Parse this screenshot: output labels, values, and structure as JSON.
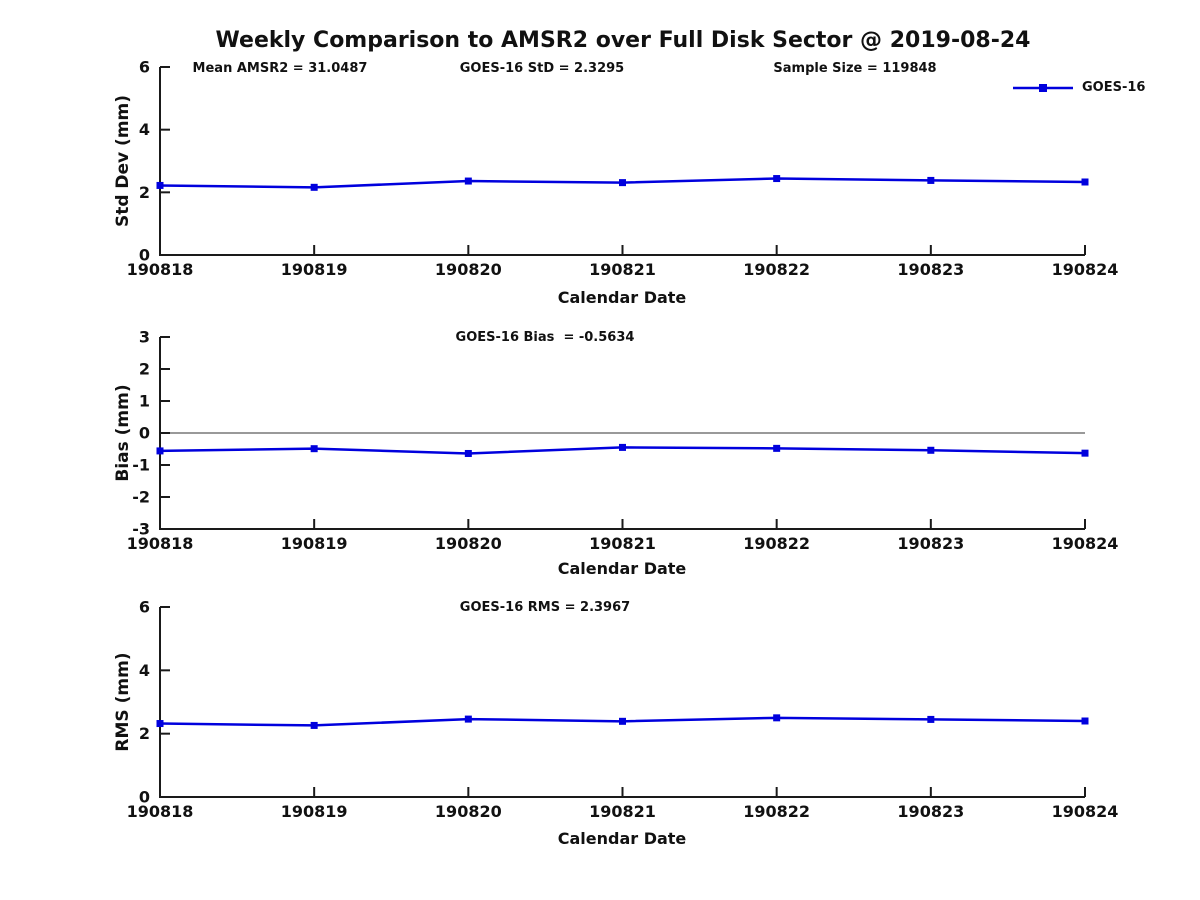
{
  "title": "Weekly Comparison to AMSR2 over Full Disk Sector @ 2019-08-24",
  "legend": {
    "label": "GOES-16",
    "position": "top-right",
    "color": "#0000dd"
  },
  "colors": {
    "line": "#0000dd",
    "axis": "#1a1a1a",
    "zero_line": "#333333",
    "text": "#111111"
  },
  "chart_data": [
    {
      "type": "line",
      "name": "std-dev",
      "ylabel": "Std Dev (mm)",
      "xlabel": "Calendar Date",
      "categories": [
        "190818",
        "190819",
        "190820",
        "190821",
        "190822",
        "190823",
        "190824"
      ],
      "yticks": [
        0,
        2,
        4,
        6
      ],
      "ylim": [
        0,
        6
      ],
      "grid": false,
      "series": [
        {
          "name": "GOES-16",
          "color": "#0000dd",
          "marker": "square",
          "values": [
            2.22,
            2.16,
            2.36,
            2.31,
            2.44,
            2.38,
            2.33
          ]
        }
      ],
      "annotations": [
        {
          "text": "Mean AMSR2 = 31.0487"
        },
        {
          "text": "GOES-16 StD = 2.3295"
        },
        {
          "text": "Sample Size = 119848"
        }
      ]
    },
    {
      "type": "line",
      "name": "bias",
      "ylabel": "Bias (mm)",
      "xlabel": "Calendar Date",
      "categories": [
        "190818",
        "190819",
        "190820",
        "190821",
        "190822",
        "190823",
        "190824"
      ],
      "yticks": [
        -3,
        -2,
        -1,
        0,
        1,
        2,
        3
      ],
      "ylim": [
        -3,
        3
      ],
      "zero_line": true,
      "grid": false,
      "series": [
        {
          "name": "GOES-16",
          "color": "#0000dd",
          "marker": "square",
          "values": [
            -0.56,
            -0.49,
            -0.64,
            -0.45,
            -0.48,
            -0.54,
            -0.63
          ]
        }
      ],
      "annotations": [
        {
          "text": "GOES-16 Bias  = -0.5634"
        }
      ]
    },
    {
      "type": "line",
      "name": "rms",
      "ylabel": "RMS (mm)",
      "xlabel": "Calendar Date",
      "categories": [
        "190818",
        "190819",
        "190820",
        "190821",
        "190822",
        "190823",
        "190824"
      ],
      "yticks": [
        0,
        2,
        4,
        6
      ],
      "ylim": [
        0,
        6
      ],
      "grid": false,
      "series": [
        {
          "name": "GOES-16",
          "color": "#0000dd",
          "marker": "square",
          "values": [
            2.32,
            2.26,
            2.46,
            2.39,
            2.5,
            2.45,
            2.4
          ]
        }
      ],
      "annotations": [
        {
          "text": "GOES-16 RMS = 2.3967"
        }
      ]
    }
  ]
}
